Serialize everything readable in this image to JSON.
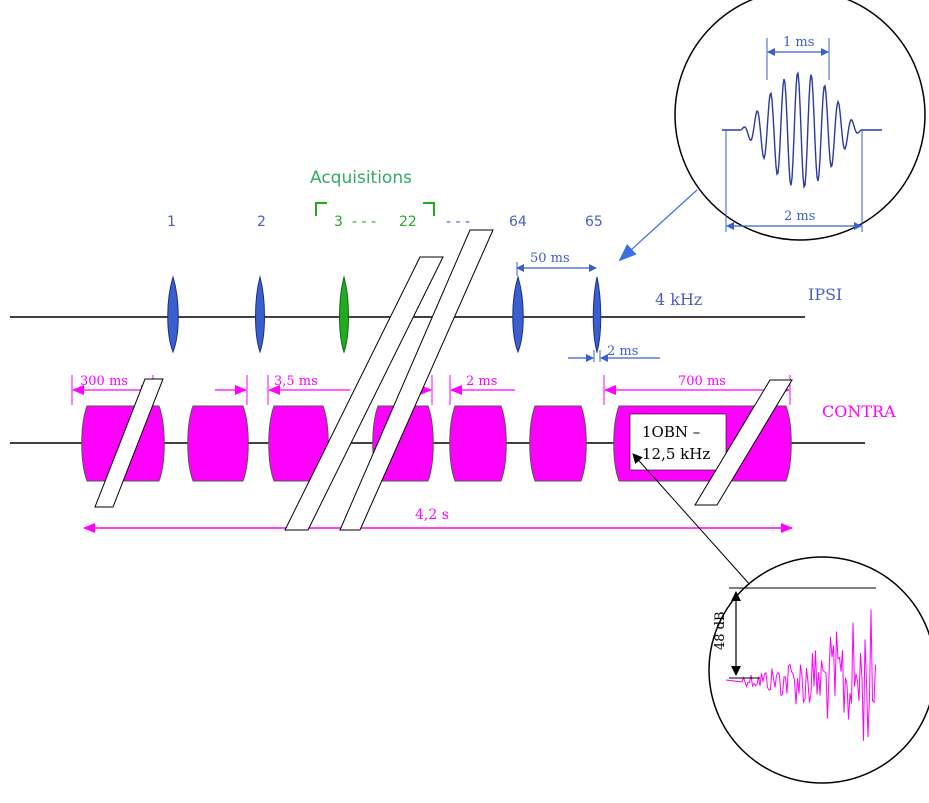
{
  "acquisitions_title": "Acquisitions",
  "acq_numbers": [
    "1",
    "2",
    "64",
    "65"
  ],
  "acq_range": [
    "3",
    "- - -",
    "22"
  ],
  "acq_dots": "- - -",
  "ipsi": {
    "label": "IPSI",
    "freq": "4 kHz",
    "interval": "50 ms",
    "gap": "2 ms",
    "zoom_top": "1 ms",
    "zoom_bottom": "2 ms"
  },
  "contra": {
    "label": "CONTRA",
    "dim_300": "300 ms",
    "dim_3_5": "3,5 ms",
    "dim_2": "2 ms",
    "dim_700": "700 ms",
    "total": "4,2 s",
    "noise_line1": "1OBN –",
    "noise_line2": "12,5 kHz",
    "zoom_db": "48 dB"
  },
  "colors": {
    "ipsi_blue": "#3a5fcd",
    "acq_green": "#22aa22",
    "contra_magenta": "#ff00ff",
    "label_blue": "#4a5fbf",
    "title_green": "#33aa66"
  }
}
